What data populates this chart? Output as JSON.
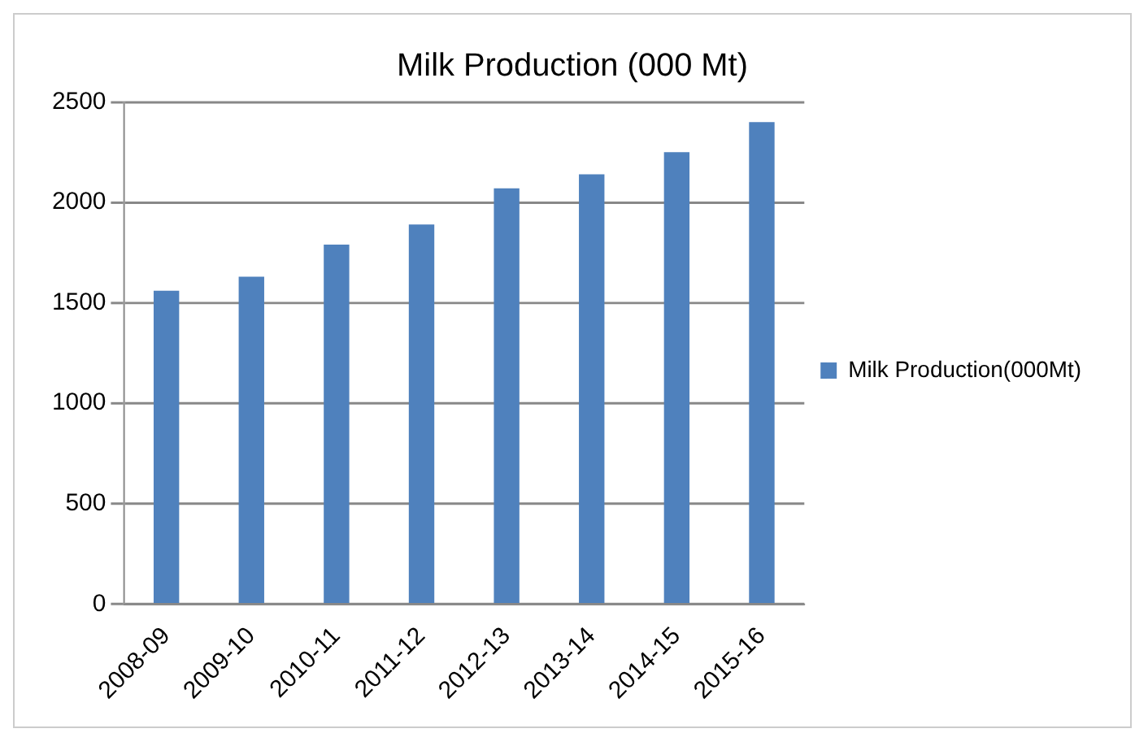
{
  "chart_data": {
    "type": "bar",
    "title": "Milk Production (000 Mt)",
    "categories": [
      "2008-09",
      "2009-10",
      "2010-11",
      "2011-12",
      "2012-13",
      "2013-14",
      "2014-15",
      "2015-16"
    ],
    "series": [
      {
        "name": "Milk Production(000Mt)",
        "color": "#4f81bd",
        "values": [
          1560,
          1630,
          1790,
          1890,
          2070,
          2140,
          2250,
          2400
        ]
      }
    ],
    "ylim": [
      0,
      2500
    ],
    "yticks": [
      0,
      500,
      1000,
      1500,
      2000,
      2500
    ],
    "grid": "y",
    "legend": "right"
  }
}
